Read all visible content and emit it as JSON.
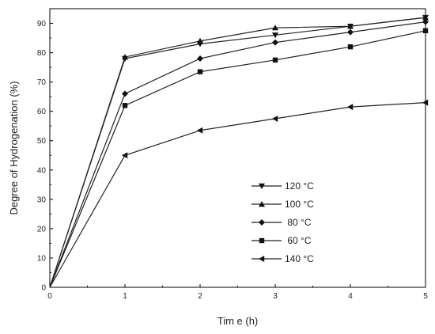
{
  "chart_data": {
    "type": "line",
    "xlabel": "Tim e (h)",
    "ylabel": "Degree of Hydrogenation (%)",
    "xlim": [
      0,
      5
    ],
    "ylim": [
      0,
      95
    ],
    "x_ticks": [
      0,
      1,
      2,
      3,
      4,
      5
    ],
    "y_ticks": [
      0,
      10,
      20,
      30,
      40,
      50,
      60,
      70,
      80,
      90
    ],
    "grid": false,
    "legend_position": "center-right",
    "x": [
      0,
      1,
      2,
      3,
      4,
      5
    ],
    "series": [
      {
        "name": "120 °C",
        "marker": "triangle-down",
        "values": [
          0,
          78,
          83,
          86,
          89,
          92
        ]
      },
      {
        "name": "100 °C",
        "marker": "triangle-up",
        "values": [
          0,
          78.5,
          84,
          88.5,
          89,
          92
        ]
      },
      {
        "name": " 80 °C",
        "marker": "diamond",
        "values": [
          0,
          66,
          78,
          83.5,
          87,
          90.5
        ]
      },
      {
        "name": " 60 °C",
        "marker": "square",
        "values": [
          0,
          62,
          73.5,
          77.5,
          82,
          87.5
        ]
      },
      {
        "name": "140 °C",
        "marker": "triangle-left",
        "values": [
          0,
          45,
          53.5,
          57.5,
          61.5,
          63
        ]
      }
    ]
  }
}
